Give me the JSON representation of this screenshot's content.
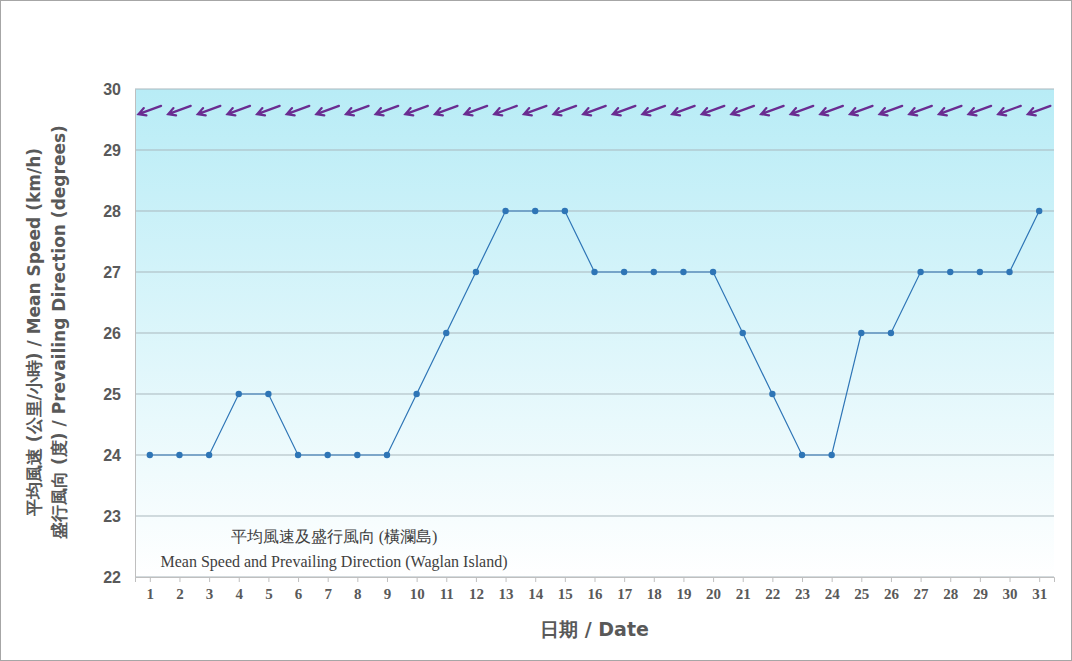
{
  "chart_data": {
    "type": "line",
    "categories": [
      "1",
      "2",
      "3",
      "4",
      "5",
      "6",
      "7",
      "8",
      "9",
      "10",
      "11",
      "12",
      "13",
      "14",
      "15",
      "16",
      "17",
      "18",
      "19",
      "20",
      "21",
      "22",
      "23",
      "24",
      "25",
      "26",
      "27",
      "28",
      "29",
      "30",
      "31"
    ],
    "values": [
      24,
      24,
      24,
      25,
      25,
      24,
      24,
      24,
      24,
      25,
      26,
      27,
      28,
      28,
      28,
      27,
      27,
      27,
      27,
      27,
      26,
      25,
      24,
      24,
      26,
      26,
      27,
      27,
      27,
      27,
      28
    ],
    "directions": [
      70,
      70,
      70,
      70,
      70,
      70,
      70,
      70,
      70,
      70,
      70,
      70,
      70,
      70,
      70,
      70,
      70,
      70,
      70,
      70,
      70,
      70,
      70,
      70,
      70,
      70,
      70,
      70,
      70,
      70,
      70
    ],
    "color": "#2e75b6",
    "marker": "circle",
    "ylim": [
      22,
      30
    ],
    "yticks": [
      22,
      23,
      24,
      25,
      26,
      27,
      28,
      29,
      30
    ],
    "grid": true,
    "x_label": "日期 / Date",
    "y_label": [
      "平均風速 (公里/小時) / Mean Speed (km/h)",
      "盛行風向 (度) / Prevailing Direction (degrees)"
    ],
    "annotations": [
      "平均風速及盛行風向 (橫瀾島)",
      "Mean Speed and Prevailing Direction (Waglan Island)"
    ]
  }
}
